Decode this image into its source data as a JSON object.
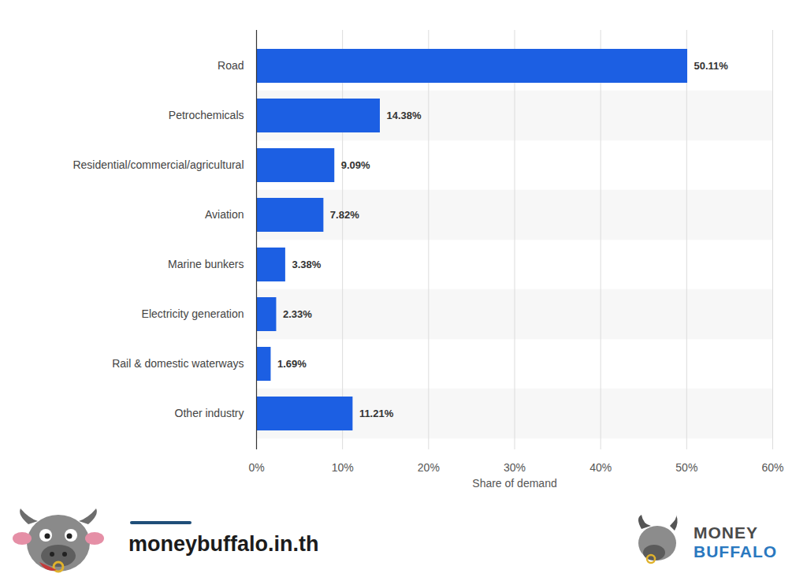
{
  "chart_data": {
    "type": "bar",
    "orientation": "horizontal",
    "categories": [
      "Road",
      "Petrochemicals",
      "Residential/commercial/agricultural",
      "Aviation",
      "Marine bunkers",
      "Electricity generation",
      "Rail & domestic waterways",
      "Other industry"
    ],
    "values": [
      50.11,
      14.38,
      9.09,
      7.82,
      3.38,
      2.33,
      1.69,
      11.21
    ],
    "value_labels": [
      "50.11%",
      "14.38%",
      "9.09%",
      "7.82%",
      "3.38%",
      "2.33%",
      "1.69%",
      "11.21%"
    ],
    "data_labels": true,
    "color": "#1c5fe3",
    "xlabel": "Share of demand",
    "xlim": [
      0,
      60
    ],
    "xticks": [
      {
        "value": 0,
        "label": "0%"
      },
      {
        "value": 10,
        "label": "10%"
      },
      {
        "value": 20,
        "label": "20%"
      },
      {
        "value": 30,
        "label": "30%"
      },
      {
        "value": 40,
        "label": "40%"
      },
      {
        "value": 50,
        "label": "50%"
      },
      {
        "value": 60,
        "label": "60%"
      }
    ],
    "grid": true,
    "annotations": [
      "moneybuffalo.in.th",
      "MONEY",
      "BUFFALO"
    ]
  }
}
